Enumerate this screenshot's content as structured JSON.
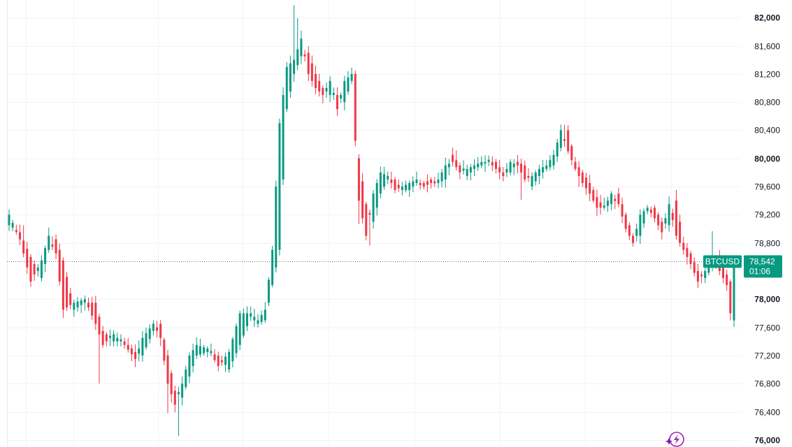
{
  "chart_data": {
    "type": "candlestick",
    "symbol": "BTCUSD",
    "ylim": [
      75900,
      82250
    ],
    "y_ticks": [
      {
        "value": 82000,
        "label": "82,000",
        "major": true
      },
      {
        "value": 81600,
        "label": "81,600",
        "major": false
      },
      {
        "value": 81200,
        "label": "81,200",
        "major": false
      },
      {
        "value": 80800,
        "label": "80,800",
        "major": false
      },
      {
        "value": 80400,
        "label": "80,400",
        "major": false
      },
      {
        "value": 80000,
        "label": "80,000",
        "major": true
      },
      {
        "value": 79600,
        "label": "79,600",
        "major": false
      },
      {
        "value": 79200,
        "label": "79,200",
        "major": false
      },
      {
        "value": 78800,
        "label": "78,800",
        "major": false
      },
      {
        "value": 78000,
        "label": "78,000",
        "major": true
      },
      {
        "value": 77600,
        "label": "77,600",
        "major": false
      },
      {
        "value": 77200,
        "label": "77,200",
        "major": false
      },
      {
        "value": 76800,
        "label": "76,800",
        "major": false
      },
      {
        "value": 76400,
        "label": "76,400",
        "major": false
      },
      {
        "value": 76000,
        "label": "76,000",
        "major": true
      }
    ],
    "last_price": {
      "value": 78542,
      "label": "78,542",
      "countdown": "01:06"
    },
    "anchors": [
      [
        0,
        79050,
        79200
      ],
      [
        3,
        78950,
        78850
      ],
      [
        6,
        78600,
        78250
      ],
      [
        9,
        78300,
        78550
      ],
      [
        11,
        78700,
        78900
      ],
      [
        13,
        78850,
        78650
      ],
      [
        15,
        78550,
        77850
      ],
      [
        18,
        77850,
        77950
      ],
      [
        21,
        77950,
        78000
      ],
      [
        24,
        77950,
        77650
      ],
      [
        26,
        77550,
        77350
      ],
      [
        29,
        77400,
        77500
      ],
      [
        32,
        77400,
        77350
      ],
      [
        35,
        77250,
        77150
      ],
      [
        37,
        77200,
        77450
      ],
      [
        40,
        77550,
        77650
      ],
      [
        42,
        77650,
        77450
      ],
      [
        44,
        77200,
        76800
      ],
      [
        46,
        76700,
        76500
      ],
      [
        48,
        76600,
        76800
      ],
      [
        50,
        76900,
        77200
      ],
      [
        52,
        77200,
        77350
      ],
      [
        55,
        77250,
        77300
      ],
      [
        58,
        77200,
        77050
      ],
      [
        61,
        77000,
        77250
      ],
      [
        64,
        77350,
        77800
      ],
      [
        67,
        77750,
        77800
      ],
      [
        69,
        77650,
        77700
      ],
      [
        71,
        77700,
        77850
      ],
      [
        73,
        78200,
        78700
      ],
      [
        75,
        78700,
        80500
      ],
      [
        77,
        80700,
        81300
      ],
      [
        79,
        81200,
        81400
      ],
      [
        81,
        81450,
        81700
      ],
      [
        83,
        81500,
        81200
      ],
      [
        85,
        81200,
        81000
      ],
      [
        87,
        81000,
        80900
      ],
      [
        89,
        80900,
        81100
      ],
      [
        91,
        80900,
        80700
      ],
      [
        93,
        80800,
        81100
      ],
      [
        95,
        81100,
        81200
      ],
      [
        96,
        81200,
        80250
      ],
      [
        97,
        80000,
        79400
      ],
      [
        99,
        79350,
        78900
      ],
      [
        101,
        79100,
        79500
      ],
      [
        103,
        79500,
        79800
      ],
      [
        105,
        79700,
        79750
      ],
      [
        107,
        79700,
        79550
      ],
      [
        109,
        79550,
        79600
      ],
      [
        111,
        79550,
        79650
      ],
      [
        113,
        79650,
        79700
      ],
      [
        115,
        79650,
        79600
      ],
      [
        117,
        79700,
        79650
      ],
      [
        119,
        79650,
        79700
      ],
      [
        121,
        79700,
        79900
      ],
      [
        123,
        80050,
        79950
      ],
      [
        125,
        79900,
        79800
      ],
      [
        127,
        79750,
        79850
      ],
      [
        129,
        79850,
        79900
      ],
      [
        131,
        79900,
        79950
      ],
      [
        133,
        79950,
        79950
      ],
      [
        135,
        79950,
        79850
      ],
      [
        137,
        79800,
        79750
      ],
      [
        139,
        79800,
        79950
      ],
      [
        141,
        79950,
        79900
      ],
      [
        143,
        79900,
        79700
      ],
      [
        145,
        79600,
        79750
      ],
      [
        147,
        79750,
        79850
      ],
      [
        149,
        79850,
        79900
      ],
      [
        151,
        79900,
        80050
      ],
      [
        153,
        80150,
        80400
      ],
      [
        155,
        80400,
        80100
      ],
      [
        157,
        79950,
        79850
      ],
      [
        159,
        79800,
        79650
      ],
      [
        161,
        79650,
        79500
      ],
      [
        163,
        79450,
        79300
      ],
      [
        165,
        79300,
        79300
      ],
      [
        167,
        79350,
        79500
      ],
      [
        169,
        79500,
        79350
      ],
      [
        171,
        79200,
        79000
      ],
      [
        173,
        78900,
        78800
      ],
      [
        175,
        78900,
        79200
      ],
      [
        177,
        79250,
        79300
      ],
      [
        179,
        79300,
        79150
      ],
      [
        181,
        79100,
        78950
      ],
      [
        183,
        79050,
        79350
      ],
      [
        185,
        79400,
        78900
      ],
      [
        187,
        78800,
        78700
      ],
      [
        189,
        78650,
        78500
      ],
      [
        191,
        78400,
        78250
      ],
      [
        193,
        78300,
        78400
      ],
      [
        195,
        78450,
        78600
      ],
      [
        197,
        78600,
        78400
      ],
      [
        199,
        78350,
        78200
      ],
      [
        200,
        78250,
        77800
      ],
      [
        201,
        77700,
        78540
      ]
    ]
  }
}
